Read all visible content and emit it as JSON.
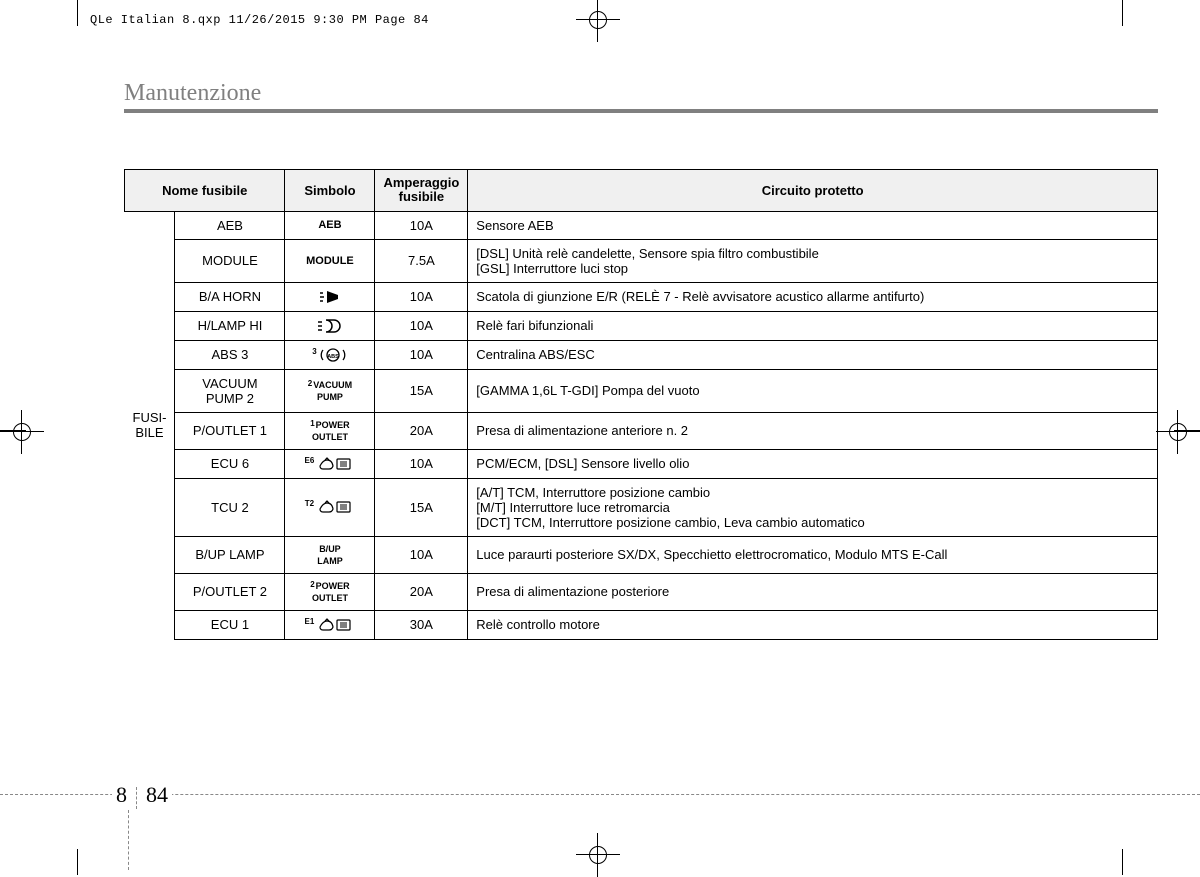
{
  "meta": {
    "header_line": "QLe Italian 8.qxp  11/26/2015  9:30 PM  Page 84"
  },
  "section": {
    "title": "Manutenzione"
  },
  "table": {
    "headers": {
      "name": "Nome fusibile",
      "symbol": "Simbolo",
      "amp": "Amperaggio fusibile",
      "circuit": "Circuito protetto"
    },
    "group_label": "FUSI-\nBILE",
    "rows": [
      {
        "name": "AEB",
        "symbol_text": "AEB",
        "amp": "10A",
        "circuit": "Sensore AEB"
      },
      {
        "name": "MODULE",
        "symbol_text": "MODULE",
        "amp": "7.5A",
        "circuit": "[DSL] Unità relè candelette, Sensore spia filtro combustibile\n[GSL] Interruttore luci stop"
      },
      {
        "name": "B/A HORN",
        "symbol_icon": "horn",
        "amp": "10A",
        "circuit": "Scatola di giunzione E/R (RELÈ 7 - Relè avvisatore acustico allarme antifurto)"
      },
      {
        "name": "H/LAMP HI",
        "symbol_icon": "headlamp",
        "amp": "10A",
        "circuit": "Relè fari bifunzionali"
      },
      {
        "name": "ABS 3",
        "symbol_sup": "3",
        "symbol_icon": "abs",
        "amp": "10A",
        "circuit": "Centralina ABS/ESC"
      },
      {
        "name": "VACUUM PUMP 2",
        "symbol_sup": "2",
        "symbol_small": "VACUUM\nPUMP",
        "amp": "15A",
        "circuit": "[GAMMA 1,6L T-GDI] Pompa del vuoto"
      },
      {
        "name": "P/OUTLET 1",
        "symbol_sup": "1",
        "symbol_small": "POWER\nOUTLET",
        "amp": "20A",
        "circuit": "Presa di alimentazione anteriore n. 2"
      },
      {
        "name": "ECU 6",
        "symbol_sup": "E6",
        "symbol_icon": "ecu",
        "amp": "10A",
        "circuit": "PCM/ECM, [DSL] Sensore livello olio"
      },
      {
        "name": "TCU 2",
        "symbol_sup": "T2",
        "symbol_icon": "ecu",
        "amp": "15A",
        "circuit": "[A/T] TCM, Interruttore posizione cambio\n[M/T] Interruttore luce retromarcia\n[DCT] TCM, Interruttore posizione cambio, Leva cambio automatico"
      },
      {
        "name": "B/UP LAMP",
        "symbol_small": "B/UP\nLAMP",
        "amp": "10A",
        "circuit": "Luce paraurti posteriore SX/DX, Specchietto elettrocromatico, Modulo MTS E-Call"
      },
      {
        "name": "P/OUTLET 2",
        "symbol_sup": "2",
        "symbol_small": "POWER\nOUTLET",
        "amp": "20A",
        "circuit": "Presa di alimentazione posteriore"
      },
      {
        "name": "ECU 1",
        "symbol_sup": "E1",
        "symbol_icon": "ecu",
        "amp": "30A",
        "circuit": "Relè controllo motore"
      }
    ]
  },
  "page": {
    "section_num": "8",
    "page_num": "84"
  }
}
